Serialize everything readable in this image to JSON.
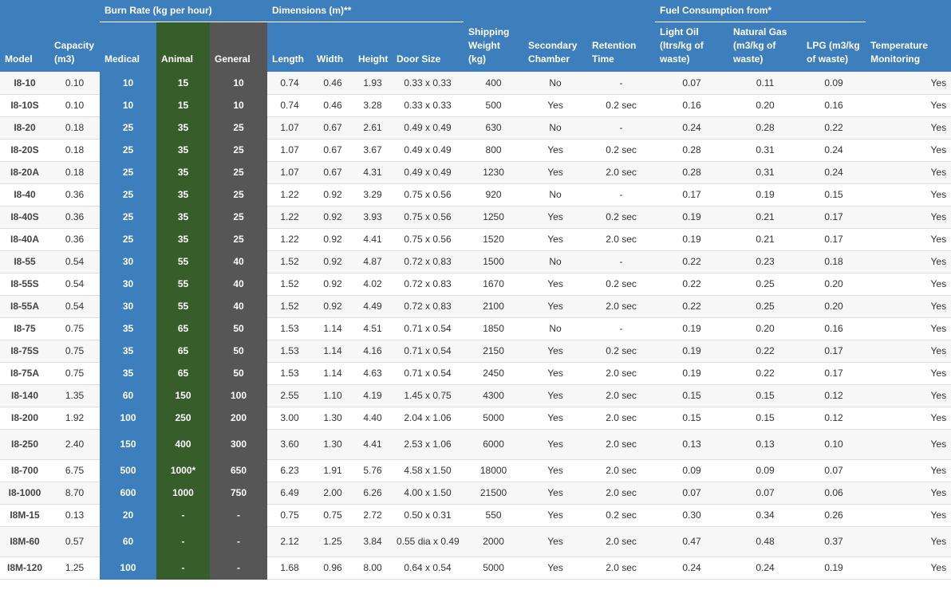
{
  "colors": {
    "header_blue": "#3d7ebd",
    "animal_green": "#375e2a",
    "general_gray": "#565656"
  },
  "headers": {
    "burn_rate_group": "Burn Rate (kg per hour)",
    "dimensions_group": "Dimensions (m)**",
    "fuel_group": "Fuel Consumption from*",
    "model": "Model",
    "capacity": "Capacity (m3)",
    "medical": "Medical",
    "animal": "Animal",
    "general": "General",
    "length": "Length",
    "width": "Width",
    "height": "Height",
    "door_size": "Door Size",
    "shipping_weight": "Shipping Weight (kg)",
    "secondary_chamber": "Secondary Chamber",
    "retention_time": "Retention Time",
    "light_oil": "Light Oil (ltrs/kg of waste)",
    "natural_gas": "Natural Gas (m3/kg of waste)",
    "lpg": "LPG (m3/kg of waste)",
    "temperature_monitoring": "Temperature Monitoring"
  },
  "rows": [
    [
      "I8-10",
      "0.10",
      "10",
      "15",
      "10",
      "0.74",
      "0.46",
      "1.93",
      "0.33 x 0.33",
      "400",
      "No",
      "-",
      "0.07",
      "0.11",
      "0.09",
      "Yes"
    ],
    [
      "I8-10S",
      "0.10",
      "10",
      "15",
      "10",
      "0.74",
      "0.46",
      "3.28",
      "0.33 x 0.33",
      "500",
      "Yes",
      "0.2 sec",
      "0.16",
      "0.20",
      "0.16",
      "Yes"
    ],
    [
      "I8-20",
      "0.18",
      "25",
      "35",
      "25",
      "1.07",
      "0.67",
      "2.61",
      "0.49 x 0.49",
      "630",
      "No",
      "-",
      "0.24",
      "0.28",
      "0.22",
      "Yes"
    ],
    [
      "I8-20S",
      "0.18",
      "25",
      "35",
      "25",
      "1.07",
      "0.67",
      "3.67",
      "0.49 x 0.49",
      "800",
      "Yes",
      "0.2 sec",
      "0.28",
      "0.31",
      "0.24",
      "Yes"
    ],
    [
      "I8-20A",
      "0.18",
      "25",
      "35",
      "25",
      "1.07",
      "0.67",
      "4.31",
      "0.49 x 0.49",
      "1230",
      "Yes",
      "2.0 sec",
      "0.28",
      "0.31",
      "0.24",
      "Yes"
    ],
    [
      "I8-40",
      "0.36",
      "25",
      "35",
      "25",
      "1.22",
      "0.92",
      "3.29",
      "0.75 x 0.56",
      "920",
      "No",
      "-",
      "0.17",
      "0.19",
      "0.15",
      "Yes"
    ],
    [
      "I8-40S",
      "0.36",
      "25",
      "35",
      "25",
      "1.22",
      "0.92",
      "3.93",
      "0.75 x 0.56",
      "1250",
      "Yes",
      "0.2 sec",
      "0.19",
      "0.21",
      "0.17",
      "Yes"
    ],
    [
      "I8-40A",
      "0.36",
      "25",
      "35",
      "25",
      "1.22",
      "0.92",
      "4.41",
      "0.75 x 0.56",
      "1520",
      "Yes",
      "2.0 sec",
      "0.19",
      "0.21",
      "0.17",
      "Yes"
    ],
    [
      "I8-55",
      "0.54",
      "30",
      "55",
      "40",
      "1.52",
      "0.92",
      "4.87",
      "0.72 x 0.83",
      "1500",
      "No",
      "-",
      "0.22",
      "0.23",
      "0.18",
      "Yes"
    ],
    [
      "I8-55S",
      "0.54",
      "30",
      "55",
      "40",
      "1.52",
      "0.92",
      "4.02",
      "0.72 x 0.83",
      "1670",
      "Yes",
      "0.2 sec",
      "0.22",
      "0.25",
      "0.20",
      "Yes"
    ],
    [
      "I8-55A",
      "0.54",
      "30",
      "55",
      "40",
      "1.52",
      "0.92",
      "4.49",
      "0.72 x 0.83",
      "2100",
      "Yes",
      "2.0 sec",
      "0.22",
      "0.25",
      "0.20",
      "Yes"
    ],
    [
      "I8-75",
      "0.75",
      "35",
      "65",
      "50",
      "1.53",
      "1.14",
      "4.51",
      "0.71 x 0.54",
      "1850",
      "No",
      "-",
      "0.19",
      "0.20",
      "0.16",
      "Yes"
    ],
    [
      "I8-75S",
      "0.75",
      "35",
      "65",
      "50",
      "1.53",
      "1.14",
      "4.16",
      "0.71 x 0.54",
      "2150",
      "Yes",
      "0.2 sec",
      "0.19",
      "0.22",
      "0.17",
      "Yes"
    ],
    [
      "I8-75A",
      "0.75",
      "35",
      "65",
      "50",
      "1.53",
      "1.14",
      "4.63",
      "0.71 x 0.54",
      "2450",
      "Yes",
      "2.0 sec",
      "0.19",
      "0.22",
      "0.17",
      "Yes"
    ],
    [
      "I8-140",
      "1.35",
      "60",
      "150",
      "100",
      "2.55",
      "1.10",
      "4.19",
      "1.45 x 0.75",
      "4300",
      "Yes",
      "2.0 sec",
      "0.15",
      "0.15",
      "0.12",
      "Yes"
    ],
    [
      "I8-200",
      "1.92",
      "100",
      "250",
      "200",
      "3.00",
      "1.30",
      "4.40",
      "2.04 x 1.06",
      "5000",
      "Yes",
      "2.0 sec",
      "0.15",
      "0.15",
      "0.12",
      "Yes"
    ],
    [
      "I8-250",
      "2.40",
      "150",
      "400",
      "300",
      "3.60",
      "1.30",
      "4.41",
      "2.53 x 1.06",
      "6000",
      "Yes",
      "2.0 sec",
      "0.13",
      "0.13",
      "0.10",
      "Yes"
    ],
    [
      "I8-700",
      "6.75",
      "500",
      "1000*",
      "650",
      "6.23",
      "1.91",
      "5.76",
      "4.58 x 1.50",
      "18000",
      "Yes",
      "2.0 sec",
      "0.09",
      "0.09",
      "0.07",
      "Yes"
    ],
    [
      "I8-1000",
      "8.70",
      "600",
      "1000",
      "750",
      "6.49",
      "2.00",
      "6.26",
      "4.00 x 1.50",
      "21500",
      "Yes",
      "2.0 sec",
      "0.07",
      "0.07",
      "0.06",
      "Yes"
    ],
    [
      "I8M-15",
      "0.13",
      "20",
      "-",
      "-",
      "0.75",
      "0.75",
      "2.72",
      "0.50 x 0.31",
      "550",
      "Yes",
      "0.2 sec",
      "0.30",
      "0.34",
      "0.26",
      "Yes"
    ],
    [
      "I8M-60",
      "0.57",
      "60",
      "-",
      "-",
      "2.12",
      "1.25",
      "3.84",
      "0.55 dia x 0.49",
      "2000",
      "Yes",
      "2.0 sec",
      "0.47",
      "0.48",
      "0.37",
      "Yes"
    ],
    [
      "I8M-120",
      "1.25",
      "100",
      "-",
      "-",
      "1.68",
      "0.96",
      "8.00",
      "0.64 x 0.54",
      "5000",
      "Yes",
      "2.0 sec",
      "0.24",
      "0.24",
      "0.19",
      "Yes"
    ]
  ]
}
